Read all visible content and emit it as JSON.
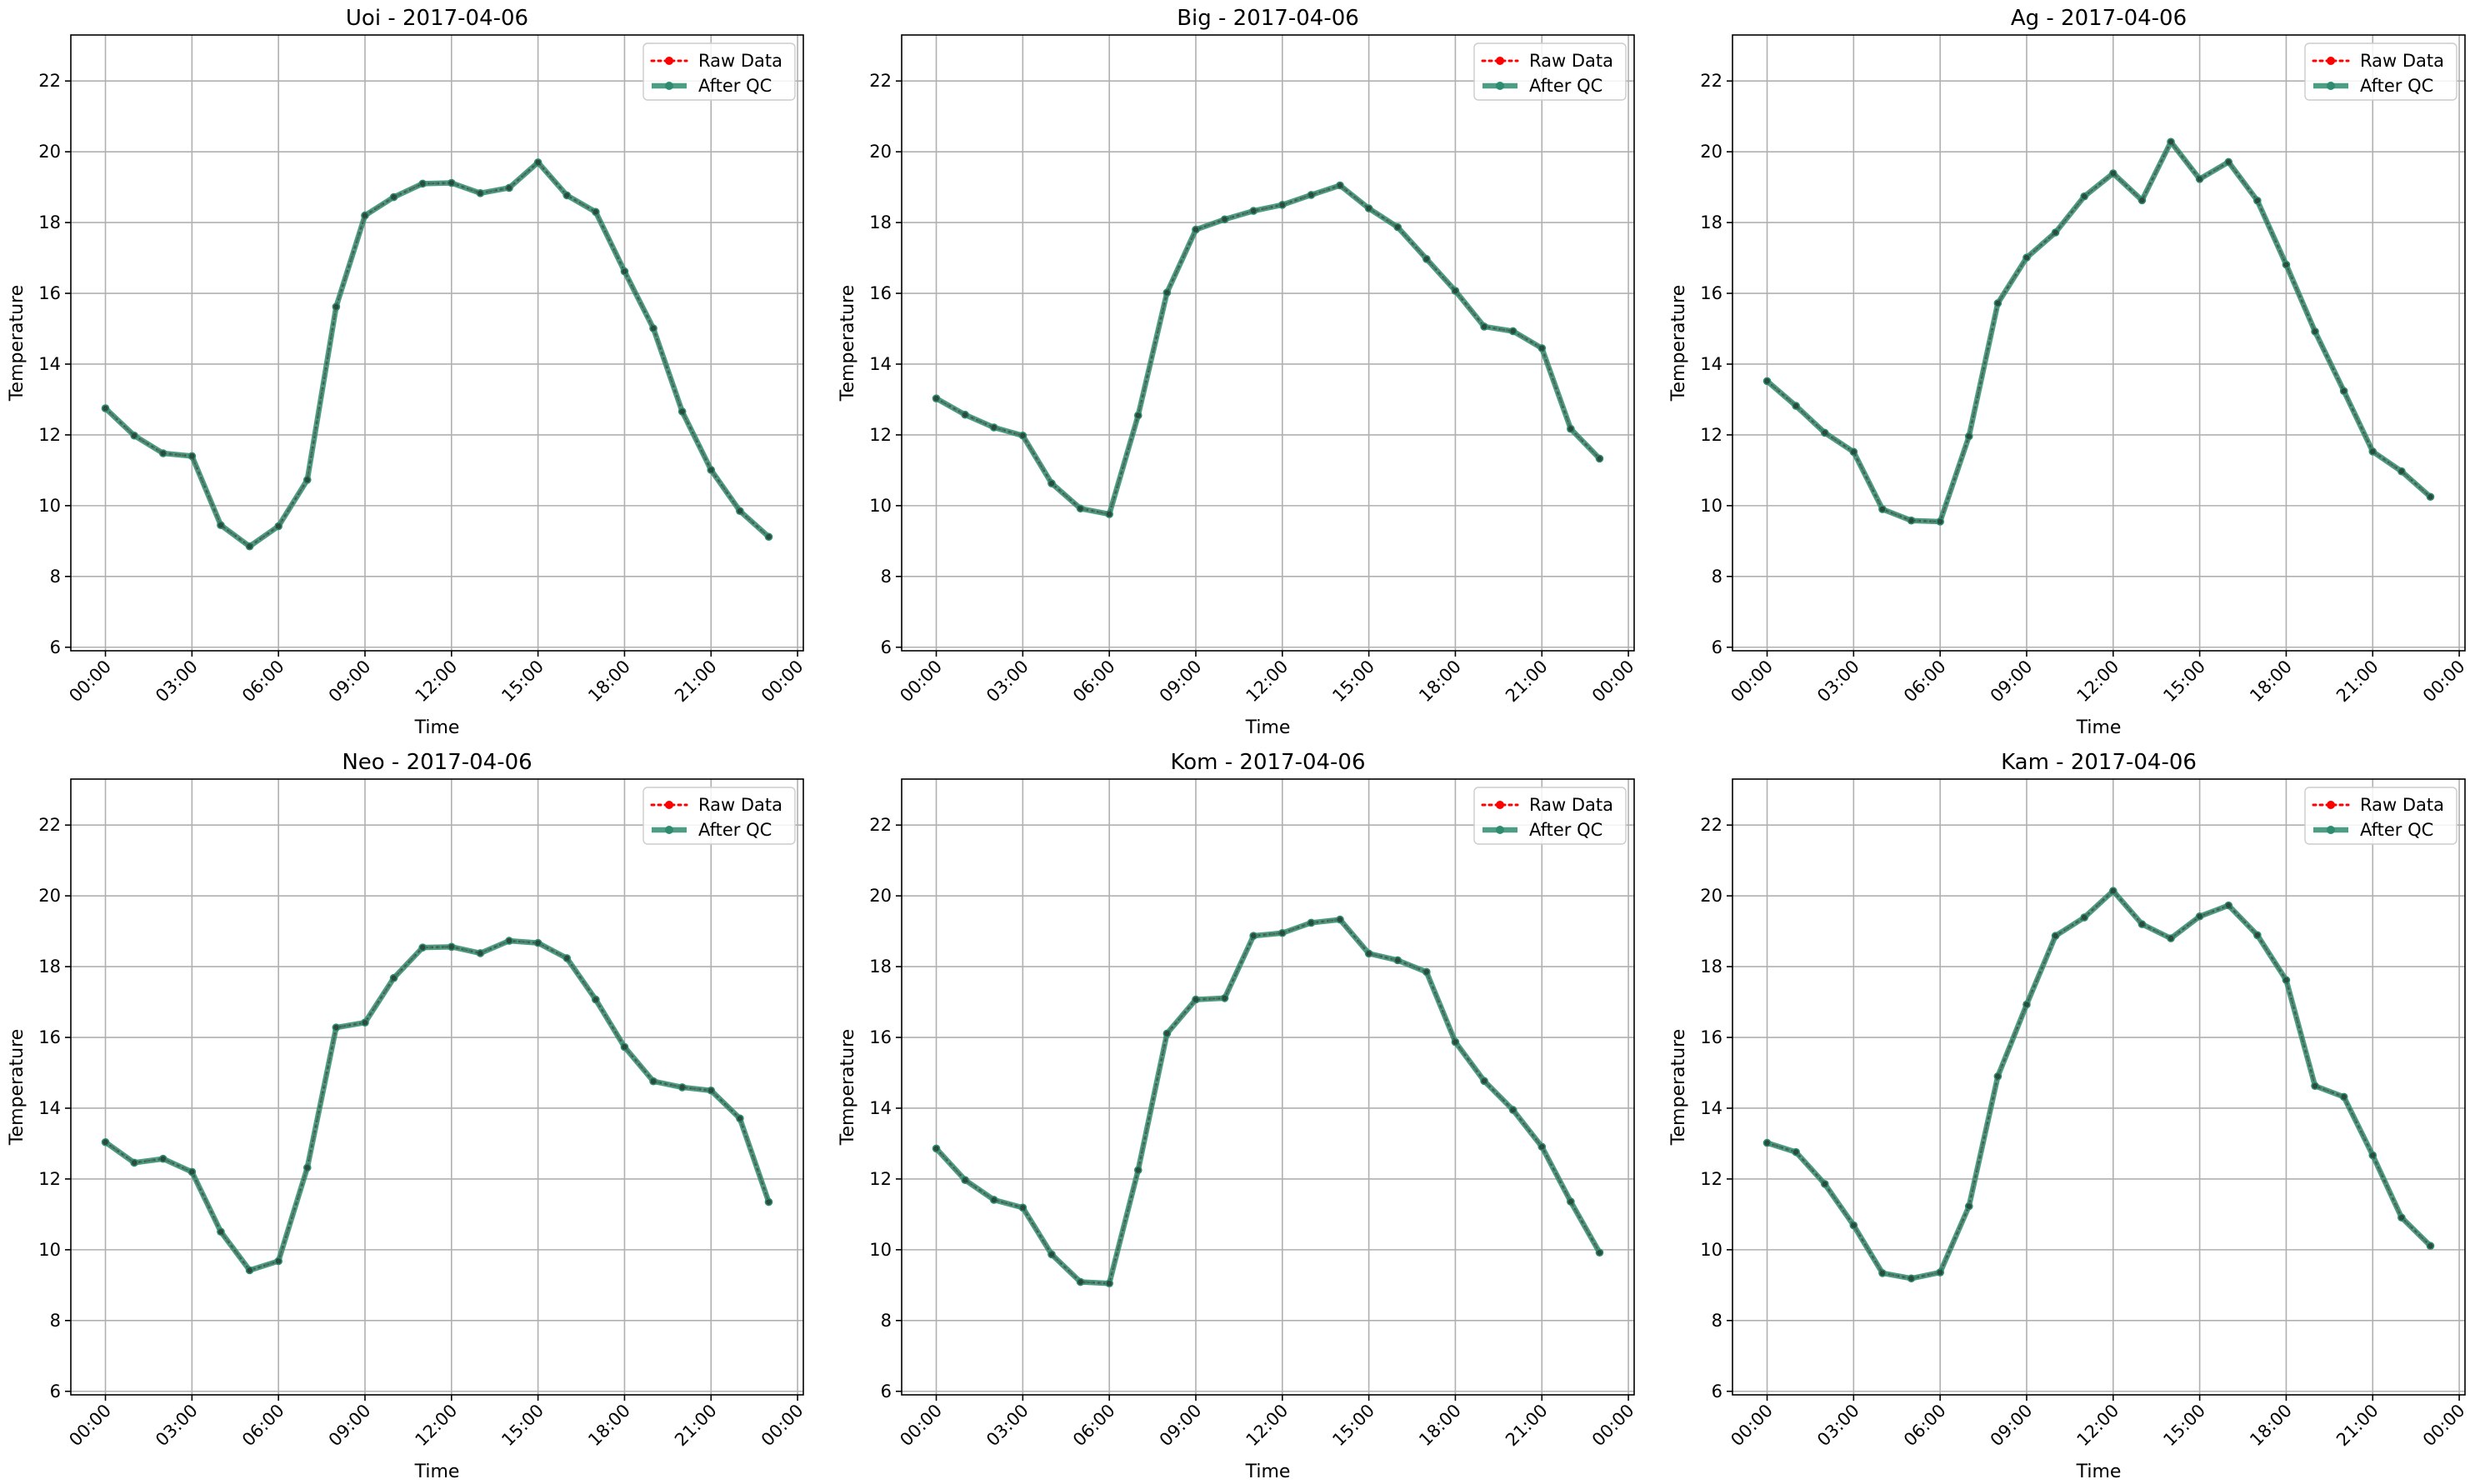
{
  "chart_data": [
    {
      "type": "line",
      "title": "Uoi - 2017-04-06",
      "xlabel": "Time",
      "ylabel": "Temperature",
      "xlim": [
        "2017-04-05 22:48",
        "2017-04-07 00:12"
      ],
      "ylim": [
        5.9,
        23.3
      ],
      "x_ticks": [
        "00:00",
        "03:00",
        "06:00",
        "09:00",
        "12:00",
        "15:00",
        "18:00",
        "21:00",
        "00:00"
      ],
      "y_ticks": [
        6,
        8,
        10,
        12,
        14,
        16,
        18,
        20,
        22
      ],
      "grid": true,
      "legend_position": "top-right",
      "x_hours": [
        0,
        1,
        2,
        3,
        4,
        5,
        6,
        7,
        8,
        9,
        10,
        11,
        12,
        13,
        14,
        15,
        16,
        17,
        18,
        19,
        20,
        21,
        22,
        23
      ],
      "series": [
        {
          "name": "Raw Data",
          "color": "#ff0000",
          "values": [
            12.75,
            11.98,
            11.48,
            11.4,
            9.45,
            8.85,
            9.42,
            10.73,
            15.62,
            18.2,
            18.72,
            19.1,
            19.12,
            18.83,
            18.98,
            19.7,
            18.77,
            18.3,
            16.62,
            15.01,
            12.66,
            11.01,
            9.85,
            9.12
          ]
        },
        {
          "name": "After QC",
          "color": "#2e8b6f",
          "values": [
            12.75,
            11.98,
            11.48,
            11.4,
            9.45,
            8.85,
            9.42,
            10.73,
            15.62,
            18.2,
            18.72,
            19.1,
            19.12,
            18.83,
            18.98,
            19.7,
            18.77,
            18.3,
            16.62,
            15.01,
            12.66,
            11.01,
            9.85,
            9.12
          ]
        }
      ]
    },
    {
      "type": "line",
      "title": "Big - 2017-04-06",
      "xlabel": "Time",
      "ylabel": "Temperature",
      "xlim": [
        "2017-04-05 22:48",
        "2017-04-07 00:12"
      ],
      "ylim": [
        5.9,
        23.3
      ],
      "x_ticks": [
        "00:00",
        "03:00",
        "06:00",
        "09:00",
        "12:00",
        "15:00",
        "18:00",
        "21:00",
        "00:00"
      ],
      "y_ticks": [
        6,
        8,
        10,
        12,
        14,
        16,
        18,
        20,
        22
      ],
      "grid": true,
      "legend_position": "top-right",
      "x_hours": [
        0,
        1,
        2,
        3,
        4,
        5,
        6,
        7,
        8,
        9,
        10,
        11,
        12,
        13,
        14,
        15,
        16,
        17,
        18,
        19,
        20,
        21,
        22,
        23
      ],
      "series": [
        {
          "name": "Raw Data",
          "color": "#ff0000",
          "values": [
            13.03,
            12.57,
            12.21,
            11.98,
            10.63,
            9.92,
            9.76,
            12.55,
            16.02,
            17.8,
            18.09,
            18.33,
            18.5,
            18.78,
            19.05,
            18.4,
            17.87,
            16.97,
            16.07,
            15.06,
            14.93,
            14.45,
            12.17,
            11.33
          ]
        },
        {
          "name": "After QC",
          "color": "#2e8b6f",
          "values": [
            13.03,
            12.57,
            12.21,
            11.98,
            10.63,
            9.92,
            9.76,
            12.55,
            16.02,
            17.8,
            18.09,
            18.33,
            18.5,
            18.78,
            19.05,
            18.4,
            17.87,
            16.97,
            16.07,
            15.06,
            14.93,
            14.45,
            12.17,
            11.33
          ]
        }
      ]
    },
    {
      "type": "line",
      "title": "Ag - 2017-04-06",
      "xlabel": "Time",
      "ylabel": "Temperature",
      "xlim": [
        "2017-04-05 22:48",
        "2017-04-07 00:12"
      ],
      "ylim": [
        5.9,
        23.3
      ],
      "x_ticks": [
        "00:00",
        "03:00",
        "06:00",
        "09:00",
        "12:00",
        "15:00",
        "18:00",
        "21:00",
        "00:00"
      ],
      "y_ticks": [
        6,
        8,
        10,
        12,
        14,
        16,
        18,
        20,
        22
      ],
      "grid": true,
      "legend_position": "top-right",
      "x_hours": [
        0,
        1,
        2,
        3,
        4,
        5,
        6,
        7,
        8,
        9,
        10,
        11,
        12,
        13,
        14,
        15,
        16,
        17,
        18,
        19,
        20,
        21,
        22,
        23
      ],
      "series": [
        {
          "name": "Raw Data",
          "color": "#ff0000",
          "values": [
            13.52,
            12.82,
            12.06,
            11.52,
            9.9,
            9.58,
            9.55,
            11.96,
            15.72,
            17.01,
            17.72,
            18.74,
            19.39,
            18.63,
            20.28,
            19.23,
            19.71,
            18.62,
            16.81,
            14.92,
            13.24,
            11.53,
            10.97,
            10.25
          ]
        },
        {
          "name": "After QC",
          "color": "#2e8b6f",
          "values": [
            13.52,
            12.82,
            12.06,
            11.52,
            9.9,
            9.58,
            9.55,
            11.96,
            15.72,
            17.01,
            17.72,
            18.74,
            19.39,
            18.63,
            20.28,
            19.23,
            19.71,
            18.62,
            16.81,
            14.92,
            13.24,
            11.53,
            10.97,
            10.25
          ]
        }
      ]
    },
    {
      "type": "line",
      "title": "Neo - 2017-04-06",
      "xlabel": "Time",
      "ylabel": "Temperature",
      "xlim": [
        "2017-04-05 22:48",
        "2017-04-07 00:12"
      ],
      "ylim": [
        5.9,
        23.3
      ],
      "x_ticks": [
        "00:00",
        "03:00",
        "06:00",
        "09:00",
        "12:00",
        "15:00",
        "18:00",
        "21:00",
        "00:00"
      ],
      "y_ticks": [
        6,
        8,
        10,
        12,
        14,
        16,
        18,
        20,
        22
      ],
      "grid": true,
      "legend_position": "top-right",
      "x_hours": [
        0,
        1,
        2,
        3,
        4,
        5,
        6,
        7,
        8,
        9,
        10,
        11,
        12,
        13,
        14,
        15,
        16,
        17,
        18,
        19,
        20,
        21,
        22,
        23
      ],
      "series": [
        {
          "name": "Raw Data",
          "color": "#ff0000",
          "values": [
            13.04,
            12.46,
            12.57,
            12.2,
            10.51,
            9.42,
            9.68,
            12.32,
            16.28,
            16.42,
            17.68,
            18.54,
            18.56,
            18.38,
            18.73,
            18.67,
            18.24,
            17.07,
            15.73,
            14.76,
            14.59,
            14.5,
            13.71,
            11.35
          ]
        },
        {
          "name": "After QC",
          "color": "#2e8b6f",
          "values": [
            13.04,
            12.46,
            12.57,
            12.2,
            10.51,
            9.42,
            9.68,
            12.32,
            16.28,
            16.42,
            17.68,
            18.54,
            18.56,
            18.38,
            18.73,
            18.67,
            18.24,
            17.07,
            15.73,
            14.76,
            14.59,
            14.5,
            13.71,
            11.35
          ]
        }
      ]
    },
    {
      "type": "line",
      "title": "Kom - 2017-04-06",
      "xlabel": "Time",
      "ylabel": "Temperature",
      "xlim": [
        "2017-04-05 22:48",
        "2017-04-07 00:12"
      ],
      "ylim": [
        5.9,
        23.3
      ],
      "x_ticks": [
        "00:00",
        "03:00",
        "06:00",
        "09:00",
        "12:00",
        "15:00",
        "18:00",
        "21:00",
        "00:00"
      ],
      "y_ticks": [
        6,
        8,
        10,
        12,
        14,
        16,
        18,
        20,
        22
      ],
      "grid": true,
      "legend_position": "top-right",
      "x_hours": [
        0,
        1,
        2,
        3,
        4,
        5,
        6,
        7,
        8,
        9,
        10,
        11,
        12,
        13,
        14,
        15,
        16,
        17,
        18,
        19,
        20,
        21,
        22,
        23
      ],
      "series": [
        {
          "name": "Raw Data",
          "color": "#ff0000",
          "values": [
            12.86,
            11.97,
            11.41,
            11.19,
            9.87,
            9.09,
            9.05,
            12.25,
            16.11,
            17.07,
            17.11,
            18.87,
            18.95,
            19.24,
            19.33,
            18.37,
            18.18,
            17.85,
            15.87,
            14.77,
            13.95,
            12.91,
            11.36,
            9.92
          ]
        },
        {
          "name": "After QC",
          "color": "#2e8b6f",
          "values": [
            12.86,
            11.97,
            11.41,
            11.19,
            9.87,
            9.09,
            9.05,
            12.25,
            16.11,
            17.07,
            17.11,
            18.87,
            18.95,
            19.24,
            19.33,
            18.37,
            18.18,
            17.85,
            15.87,
            14.77,
            13.95,
            12.91,
            11.36,
            9.92
          ]
        }
      ]
    },
    {
      "type": "line",
      "title": "Kam - 2017-04-06",
      "xlabel": "Time",
      "ylabel": "Temperature",
      "xlim": [
        "2017-04-05 22:48",
        "2017-04-07 00:12"
      ],
      "ylim": [
        5.9,
        23.3
      ],
      "x_ticks": [
        "00:00",
        "03:00",
        "06:00",
        "09:00",
        "12:00",
        "15:00",
        "18:00",
        "21:00",
        "00:00"
      ],
      "y_ticks": [
        6,
        8,
        10,
        12,
        14,
        16,
        18,
        20,
        22
      ],
      "grid": true,
      "legend_position": "top-right",
      "x_hours": [
        0,
        1,
        2,
        3,
        4,
        5,
        6,
        7,
        8,
        9,
        10,
        11,
        12,
        13,
        14,
        15,
        16,
        17,
        18,
        19,
        20,
        21,
        22,
        23
      ],
      "series": [
        {
          "name": "Raw Data",
          "color": "#ff0000",
          "values": [
            13.02,
            12.76,
            11.86,
            10.69,
            9.34,
            9.19,
            9.36,
            11.23,
            14.9,
            16.93,
            18.87,
            19.39,
            20.14,
            19.2,
            18.8,
            19.42,
            19.73,
            18.89,
            17.62,
            14.63,
            14.32,
            12.67,
            10.91,
            10.11
          ]
        },
        {
          "name": "After QC",
          "color": "#2e8b6f",
          "values": [
            13.02,
            12.76,
            11.86,
            10.69,
            9.34,
            9.19,
            9.36,
            11.23,
            14.9,
            16.93,
            18.87,
            19.39,
            20.14,
            19.2,
            18.8,
            19.42,
            19.73,
            18.89,
            17.62,
            14.63,
            14.32,
            12.67,
            10.91,
            10.11
          ]
        }
      ]
    }
  ]
}
